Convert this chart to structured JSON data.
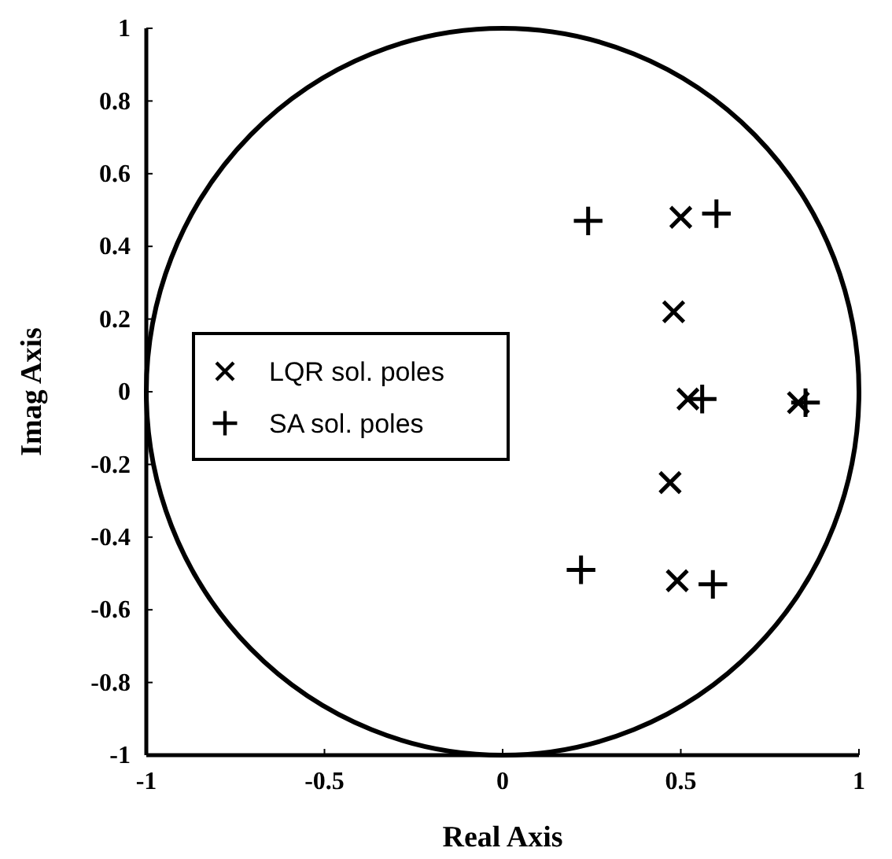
{
  "chart_data": {
    "type": "scatter",
    "xlabel": "Real Axis",
    "ylabel": "Imag Axis",
    "xlim": [
      -1,
      1
    ],
    "ylim": [
      -1,
      1
    ],
    "xticks": [
      -1,
      -0.5,
      0,
      0.5,
      1
    ],
    "yticks": [
      -1,
      -0.8,
      -0.6,
      -0.4,
      -0.2,
      0,
      0.2,
      0.4,
      0.6,
      0.8,
      1
    ],
    "legend": "left",
    "series": [
      {
        "name": "LQR sol. poles",
        "color": "#000000",
        "marker": "x",
        "x": [
          0.5,
          0.48,
          0.52,
          0.83,
          0.47,
          0.49
        ],
        "values": [
          0.48,
          0.22,
          -0.02,
          -0.03,
          -0.25,
          -0.52
        ]
      },
      {
        "name": "SA sol. poles",
        "color": "#000000",
        "marker": "cross",
        "x": [
          0.24,
          0.6,
          0.56,
          0.85,
          0.22,
          0.59
        ],
        "values": [
          0.47,
          0.49,
          -0.02,
          -0.03,
          -0.49,
          -0.53
        ]
      }
    ]
  }
}
